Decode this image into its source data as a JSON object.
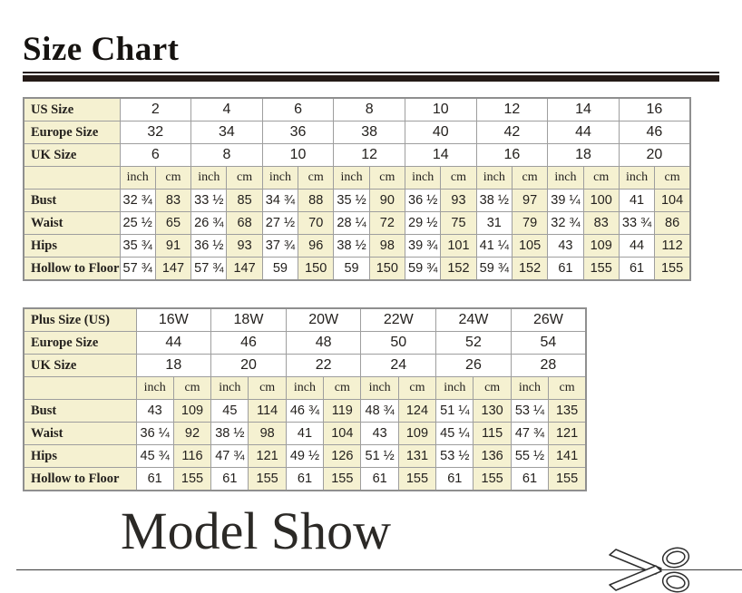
{
  "titles": {
    "size_chart": "Size Chart",
    "model_show": "Model Show"
  },
  "colors": {
    "cream": "#f5f1d1",
    "rule": "#241a16",
    "grid_border": "#9e9e9e",
    "outer_border": "#8f8f8f",
    "text": "#24211e"
  },
  "tables": [
    {
      "name": "standard-sizes",
      "unit_labels": [
        "inch",
        "cm"
      ],
      "size_rows": [
        {
          "label": "US Size",
          "values": [
            "2",
            "4",
            "6",
            "8",
            "10",
            "12",
            "14",
            "16"
          ]
        },
        {
          "label": "Europe Size",
          "values": [
            "32",
            "34",
            "36",
            "38",
            "40",
            "42",
            "44",
            "46"
          ]
        },
        {
          "label": "UK Size",
          "values": [
            "6",
            "8",
            "10",
            "12",
            "14",
            "16",
            "18",
            "20"
          ]
        }
      ],
      "measure_rows": [
        {
          "label": "Bust",
          "values": [
            "32 ¾",
            "83",
            "33 ½",
            "85",
            "34 ¾",
            "88",
            "35 ½",
            "90",
            "36 ½",
            "93",
            "38 ½",
            "97",
            "39 ¼",
            "100",
            "41",
            "104"
          ]
        },
        {
          "label": "Waist",
          "values": [
            "25 ½",
            "65",
            "26 ¾",
            "68",
            "27 ½",
            "70",
            "28 ¼",
            "72",
            "29 ½",
            "75",
            "31",
            "79",
            "32 ¾",
            "83",
            "33 ¾",
            "86"
          ]
        },
        {
          "label": "Hips",
          "values": [
            "35 ¾",
            "91",
            "36 ½",
            "93",
            "37 ¾",
            "96",
            "38 ½",
            "98",
            "39 ¾",
            "101",
            "41 ¼",
            "105",
            "43",
            "109",
            "44",
            "112"
          ]
        },
        {
          "label": "Hollow to Floor",
          "values": [
            "57 ¾",
            "147",
            "57 ¾",
            "147",
            "59",
            "150",
            "59",
            "150",
            "59 ¾",
            "152",
            "59 ¾",
            "152",
            "61",
            "155",
            "61",
            "155"
          ]
        }
      ]
    },
    {
      "name": "plus-sizes",
      "unit_labels": [
        "inch",
        "cm"
      ],
      "size_rows": [
        {
          "label": "Plus Size (US)",
          "values": [
            "16W",
            "18W",
            "20W",
            "22W",
            "24W",
            "26W"
          ]
        },
        {
          "label": "Europe Size",
          "values": [
            "44",
            "46",
            "48",
            "50",
            "52",
            "54"
          ]
        },
        {
          "label": "UK Size",
          "values": [
            "18",
            "20",
            "22",
            "24",
            "26",
            "28"
          ]
        }
      ],
      "measure_rows": [
        {
          "label": "Bust",
          "values": [
            "43",
            "109",
            "45",
            "114",
            "46 ¾",
            "119",
            "48 ¾",
            "124",
            "51 ¼",
            "130",
            "53 ¼",
            "135"
          ]
        },
        {
          "label": "Waist",
          "values": [
            "36 ¼",
            "92",
            "38 ½",
            "98",
            "41",
            "104",
            "43",
            "109",
            "45 ¼",
            "115",
            "47 ¾",
            "121"
          ]
        },
        {
          "label": "Hips",
          "values": [
            "45 ¾",
            "116",
            "47 ¾",
            "121",
            "49 ½",
            "126",
            "51 ½",
            "131",
            "53 ½",
            "136",
            "55 ½",
            "141"
          ]
        },
        {
          "label": "Hollow to Floor",
          "values": [
            "61",
            "155",
            "61",
            "155",
            "61",
            "155",
            "61",
            "155",
            "61",
            "155",
            "61",
            "155"
          ]
        }
      ]
    }
  ],
  "icons": {
    "scissors": "scissors-icon"
  }
}
